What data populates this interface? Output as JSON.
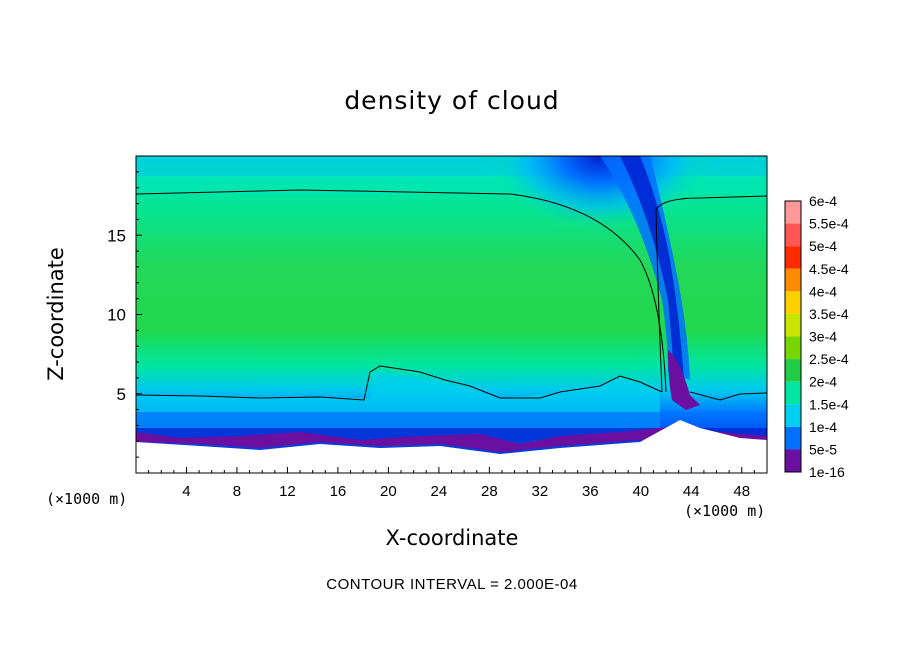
{
  "chart_data": {
    "type": "heatmap",
    "title": "density of cloud",
    "xlabel": "X-coordinate",
    "ylabel": "Z-coordinate",
    "x_unit_label": "(×1000 m)",
    "x_ticks": [
      4,
      8,
      12,
      16,
      20,
      24,
      28,
      32,
      36,
      40,
      44,
      48
    ],
    "y_ticks": [
      5,
      10,
      15
    ],
    "xlim": [
      0,
      50
    ],
    "ylim": [
      0,
      20
    ],
    "grid": false,
    "legend_position": "right",
    "colorbar": {
      "labels": [
        "6e-4",
        "5.5e-4",
        "5e-4",
        "4.5e-4",
        "4e-4",
        "3.5e-4",
        "3e-4",
        "2.5e-4",
        "2e-4",
        "1.5e-4",
        "1e-4",
        "5e-5",
        "1e-16"
      ],
      "colors": [
        "#ff9999",
        "#ff5555",
        "#ff2a00",
        "#ff8c00",
        "#ffd000",
        "#c8e600",
        "#77d600",
        "#22cc44",
        "#00e6a0",
        "#00d0f0",
        "#0070ff",
        "#0020d0",
        "#6a0fa0"
      ]
    },
    "contour_line_value": "2e-4",
    "annotation": "CONTOUR INTERVAL = 2.000E-04"
  }
}
